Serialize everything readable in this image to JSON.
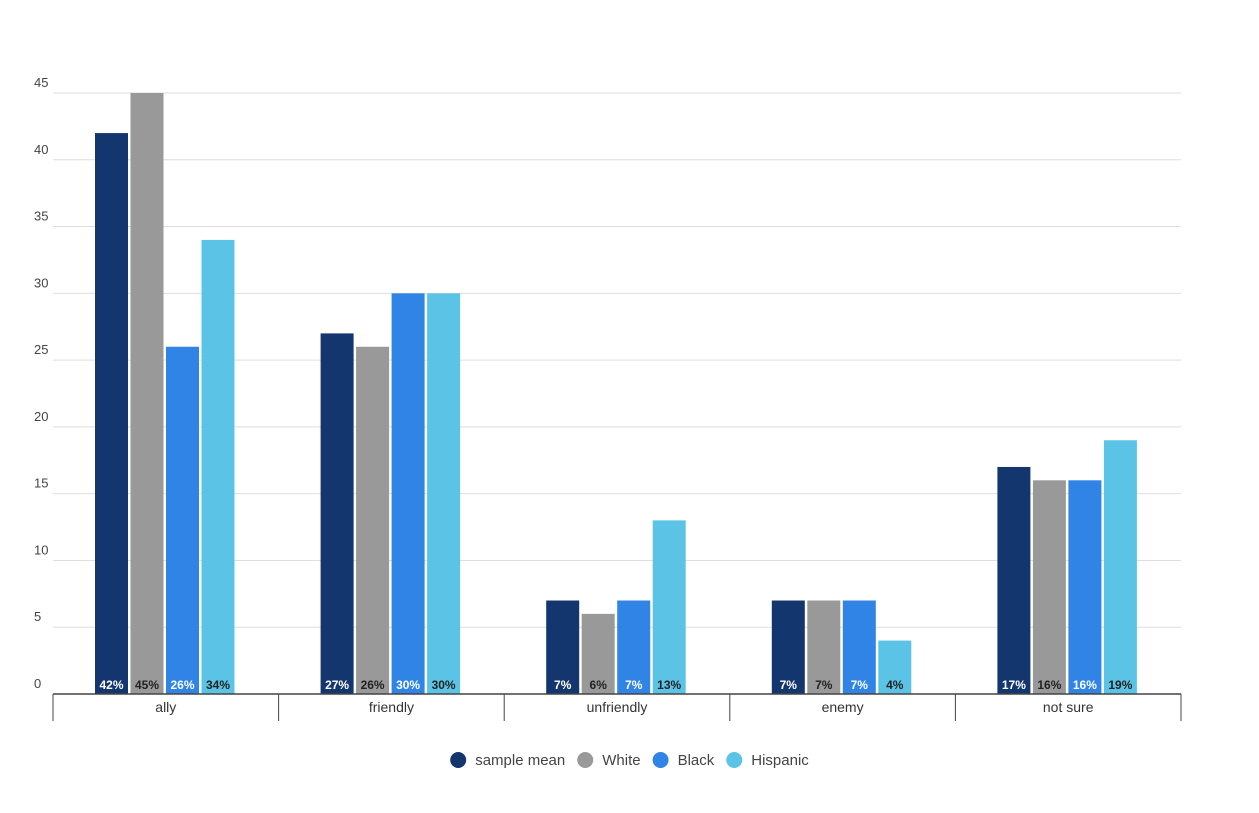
{
  "chart_data": {
    "type": "bar",
    "title": "",
    "xlabel": "",
    "ylabel": "",
    "ylim": [
      0,
      45
    ],
    "yticks": [
      0,
      5,
      10,
      15,
      20,
      25,
      30,
      35,
      40,
      45
    ],
    "grid": true,
    "legend_position": "bottom-center",
    "categories": [
      "ally",
      "friendly",
      "unfriendly",
      "enemy",
      "not sure"
    ],
    "series": [
      {
        "name": "sample mean",
        "color": "#14366f",
        "label_color": "#ffffff",
        "values": [
          42,
          27,
          7,
          7,
          17
        ],
        "labels": [
          "42%",
          "27%",
          "7%",
          "7%",
          "17%"
        ]
      },
      {
        "name": "White",
        "color": "#999999",
        "label_color": "#222222",
        "values": [
          45,
          26,
          6,
          7,
          16
        ],
        "labels": [
          "45%",
          "26%",
          "6%",
          "7%",
          "16%"
        ]
      },
      {
        "name": "Black",
        "color": "#2f84e6",
        "label_color": "#ffffff",
        "values": [
          26,
          30,
          7,
          7,
          16
        ],
        "labels": [
          "26%",
          "30%",
          "7%",
          "7%",
          "16%"
        ]
      },
      {
        "name": "Hispanic",
        "color": "#5bc4e6",
        "label_color": "#222222",
        "values": [
          34,
          30,
          13,
          4,
          19
        ],
        "labels": [
          "34%",
          "30%",
          "13%",
          "4%",
          "19%"
        ]
      }
    ]
  }
}
